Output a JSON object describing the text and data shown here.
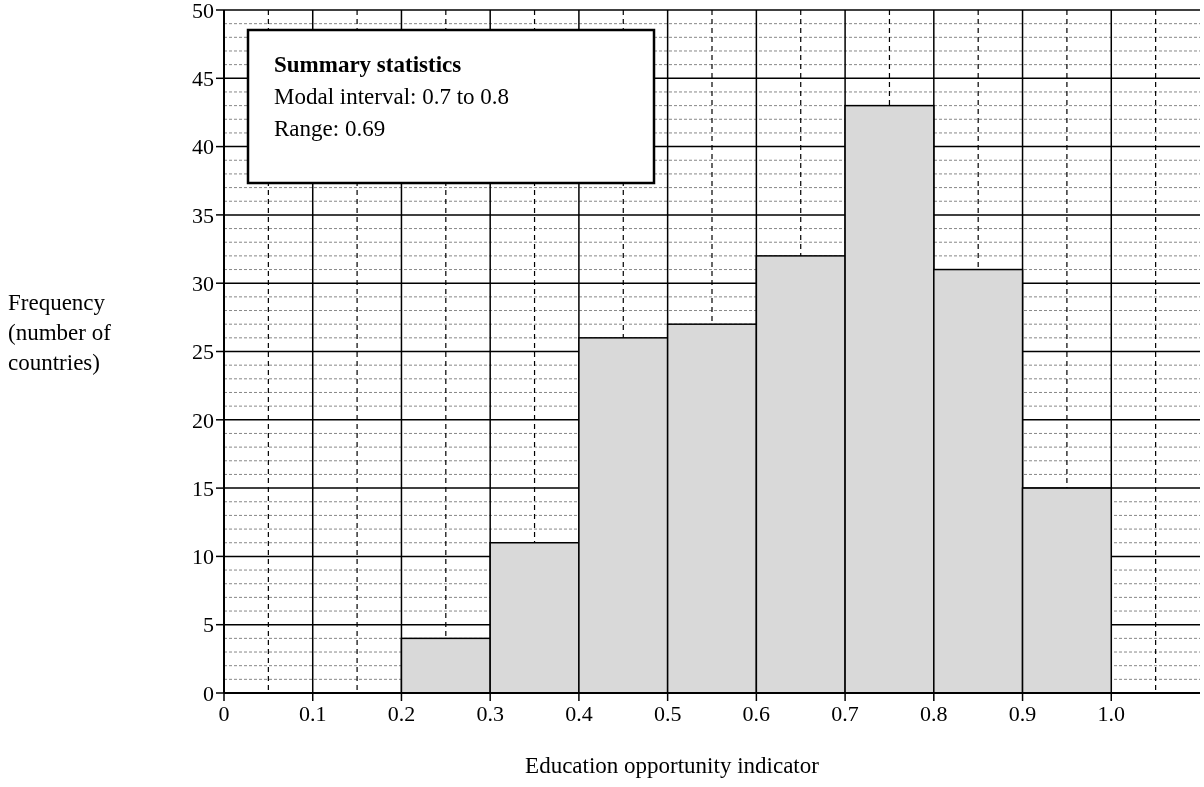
{
  "chart_data": {
    "type": "histogram",
    "xlabel": "Education opportunity indicator",
    "ylabel": "Frequency (number of countries)",
    "bins": [
      0.2,
      0.3,
      0.4,
      0.5,
      0.6,
      0.7,
      0.8,
      0.9,
      1.0
    ],
    "values": [
      4,
      11,
      26,
      27,
      32,
      43,
      31,
      15
    ],
    "color": "#d9d9d9",
    "xlim": [
      0,
      1.1
    ],
    "xticks": [
      0,
      0.1,
      0.2,
      0.3,
      0.4,
      0.5,
      0.6,
      0.7,
      0.8,
      0.9,
      {
        "value": 1,
        "label": "1.0"
      }
    ],
    "ylim": [
      0,
      50
    ],
    "yticks": [
      0,
      5,
      10,
      15,
      20,
      25,
      30,
      35,
      40,
      45,
      50
    ],
    "grid": true,
    "annotations": [
      "Summary statistics",
      "Modal interval: 0.7 to 0.8",
      "Range: 0.69"
    ]
  }
}
